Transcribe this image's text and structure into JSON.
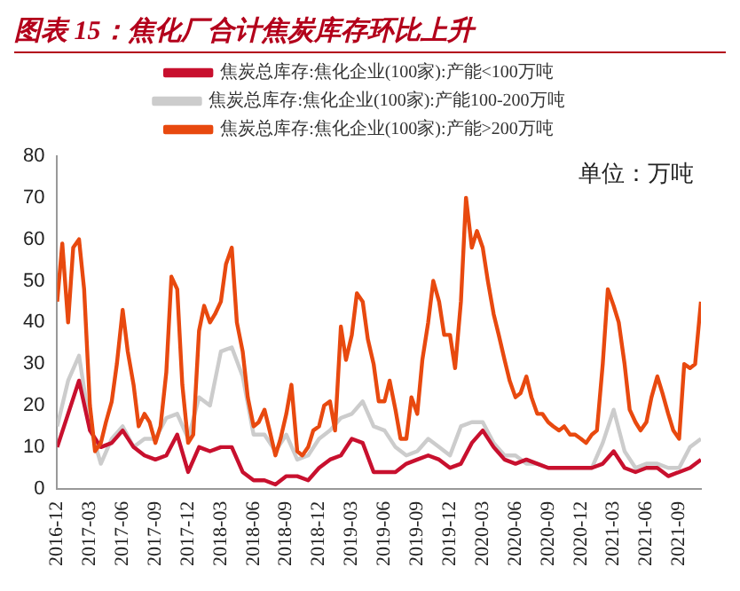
{
  "chart_data": {
    "type": "line",
    "title": "图表 15：焦化厂合计焦炭库存环比上升",
    "annotations": [
      "单位：万吨"
    ],
    "x": [
      "2016-12",
      "2017-01",
      "2017-02",
      "2017-03",
      "2017-04",
      "2017-05",
      "2017-06",
      "2017-07",
      "2017-08",
      "2017-09",
      "2017-10",
      "2017-11",
      "2017-12",
      "2018-01",
      "2018-02",
      "2018-03",
      "2018-04",
      "2018-05",
      "2018-06",
      "2018-07",
      "2018-08",
      "2018-09",
      "2018-10",
      "2018-11",
      "2018-12",
      "2019-01",
      "2019-02",
      "2019-03",
      "2019-04",
      "2019-05",
      "2019-06",
      "2019-07",
      "2019-08",
      "2019-09",
      "2019-10",
      "2019-11",
      "2019-12",
      "2020-01",
      "2020-02",
      "2020-03",
      "2020-04",
      "2020-05",
      "2020-06",
      "2020-07",
      "2020-08",
      "2020-09",
      "2020-10",
      "2020-11",
      "2020-12",
      "2021-01",
      "2021-02",
      "2021-03",
      "2021-04",
      "2021-05",
      "2021-06",
      "2021-07",
      "2021-08",
      "2021-09",
      "2021-10",
      "2021-11"
    ],
    "series": [
      {
        "name": "焦炭总库存:焦化企业(100家):产能<100万吨",
        "color": "#c8102e",
        "values": [
          10,
          18,
          26,
          14,
          10,
          11,
          14,
          10,
          8,
          7,
          8,
          13,
          4,
          10,
          9,
          10,
          10,
          4,
          2,
          2,
          1,
          3,
          3,
          2,
          5,
          7,
          8,
          12,
          11,
          4,
          4,
          4,
          6,
          7,
          8,
          7,
          5,
          6,
          11,
          14,
          10,
          7,
          6,
          7,
          6,
          5,
          5,
          5,
          5,
          5,
          6,
          9,
          5,
          4,
          5,
          5,
          3,
          4,
          5,
          7
        ]
      },
      {
        "name": "焦炭总库存:焦化企业(100家):产能100-200万吨",
        "color": "#cccccc",
        "values": [
          15,
          26,
          32,
          15,
          6,
          12,
          15,
          10,
          12,
          12,
          17,
          18,
          12,
          22,
          20,
          33,
          34,
          27,
          13,
          13,
          9,
          13,
          7,
          8,
          12,
          14,
          17,
          18,
          21,
          15,
          14,
          10,
          8,
          9,
          12,
          10,
          8,
          15,
          16,
          16,
          11,
          8,
          8,
          6,
          6,
          5,
          5,
          5,
          5,
          5,
          11,
          19,
          9,
          5,
          6,
          6,
          5,
          5,
          10,
          12
        ]
      },
      {
        "name": "焦炭总库存:焦化企业(100家):产能>200万吨",
        "color": "#e8490f",
        "x": [
          "2016-12-01",
          "2016-12-15",
          "2017-01-01",
          "2017-01-15",
          "2017-02-01",
          "2017-02-15",
          "2017-03-01",
          "2017-03-15",
          "2017-04-01",
          "2017-04-15",
          "2017-05-01",
          "2017-05-15",
          "2017-06-01",
          "2017-06-15",
          "2017-07-01",
          "2017-07-15",
          "2017-08-01",
          "2017-08-15",
          "2017-09-01",
          "2017-09-15",
          "2017-10-01",
          "2017-10-15",
          "2017-11-01",
          "2017-11-15",
          "2017-12-01",
          "2017-12-15",
          "2018-01-01",
          "2018-01-15",
          "2018-02-01",
          "2018-02-15",
          "2018-03-01",
          "2018-03-15",
          "2018-04-01",
          "2018-04-15",
          "2018-05-01",
          "2018-05-15",
          "2018-06-01",
          "2018-06-15",
          "2018-07-01",
          "2018-07-15",
          "2018-08-01",
          "2018-08-15",
          "2018-09-01",
          "2018-09-15",
          "2018-10-01",
          "2018-10-15",
          "2018-11-01",
          "2018-11-15",
          "2018-12-01",
          "2018-12-15",
          "2019-01-01",
          "2019-01-15",
          "2019-02-01",
          "2019-02-15",
          "2019-03-01",
          "2019-03-15",
          "2019-04-01",
          "2019-04-15",
          "2019-05-01",
          "2019-05-15",
          "2019-06-01",
          "2019-06-15",
          "2019-07-01",
          "2019-07-15",
          "2019-08-01",
          "2019-08-15",
          "2019-09-01",
          "2019-09-15",
          "2019-10-01",
          "2019-10-15",
          "2019-11-01",
          "2019-11-15",
          "2019-12-01",
          "2019-12-15",
          "2020-01-01",
          "2020-01-15",
          "2020-02-01",
          "2020-02-15",
          "2020-03-01",
          "2020-03-15",
          "2020-04-01",
          "2020-04-15",
          "2020-05-01",
          "2020-05-15",
          "2020-06-01",
          "2020-06-15",
          "2020-07-01",
          "2020-07-15",
          "2020-08-01",
          "2020-08-15",
          "2020-09-01",
          "2020-09-15",
          "2020-10-01",
          "2020-10-15",
          "2020-11-01",
          "2020-11-15",
          "2020-12-01",
          "2020-12-15",
          "2021-01-01",
          "2021-01-15",
          "2021-02-01",
          "2021-02-15",
          "2021-03-01",
          "2021-03-15",
          "2021-04-01",
          "2021-04-15",
          "2021-05-01",
          "2021-05-15",
          "2021-06-01",
          "2021-06-15",
          "2021-07-01",
          "2021-07-15",
          "2021-08-01",
          "2021-08-15",
          "2021-09-01",
          "2021-09-15",
          "2021-10-01",
          "2021-10-15",
          "2021-11-01"
        ],
        "values": [
          45,
          59,
          40,
          58,
          60,
          48,
          20,
          9,
          11,
          16,
          21,
          30,
          43,
          33,
          25,
          15,
          18,
          16,
          11,
          15,
          28,
          51,
          48,
          25,
          11,
          13,
          38,
          44,
          40,
          42,
          45,
          54,
          58,
          40,
          33,
          22,
          15,
          16,
          19,
          14,
          8,
          12,
          18,
          25,
          9,
          8,
          10,
          14,
          15,
          20,
          21,
          14,
          39,
          31,
          37,
          47,
          45,
          36,
          30,
          21,
          21,
          26,
          19,
          12,
          12,
          22,
          18,
          31,
          40,
          50,
          45,
          37,
          37,
          29,
          45,
          70,
          58,
          62,
          58,
          50,
          42,
          37,
          31,
          26,
          22,
          23,
          27,
          22,
          18,
          18,
          16,
          15,
          14,
          15,
          13,
          13,
          12,
          11,
          13,
          14,
          30,
          48,
          44,
          40,
          30,
          19,
          16,
          14,
          16,
          22,
          27,
          23,
          18,
          14,
          12,
          30,
          29,
          30,
          45
        ]
      }
    ],
    "xlim": [
      "2016-12",
      "2021-11"
    ],
    "xticks": [
      "2016-12",
      "2017-03",
      "2017-06",
      "2017-09",
      "2017-12",
      "2018-03",
      "2018-06",
      "2018-09",
      "2018-12",
      "2019-03",
      "2019-06",
      "2019-09",
      "2019-12",
      "2020-03",
      "2020-06",
      "2020-09",
      "2020-12",
      "2021-03",
      "2021-06",
      "2021-09"
    ],
    "ylim": [
      0,
      80
    ],
    "yticks": [
      0,
      10,
      20,
      30,
      40,
      50,
      60,
      70,
      80
    ],
    "grid": false,
    "legend": "top",
    "marker": "none",
    "line_style": "solid"
  }
}
